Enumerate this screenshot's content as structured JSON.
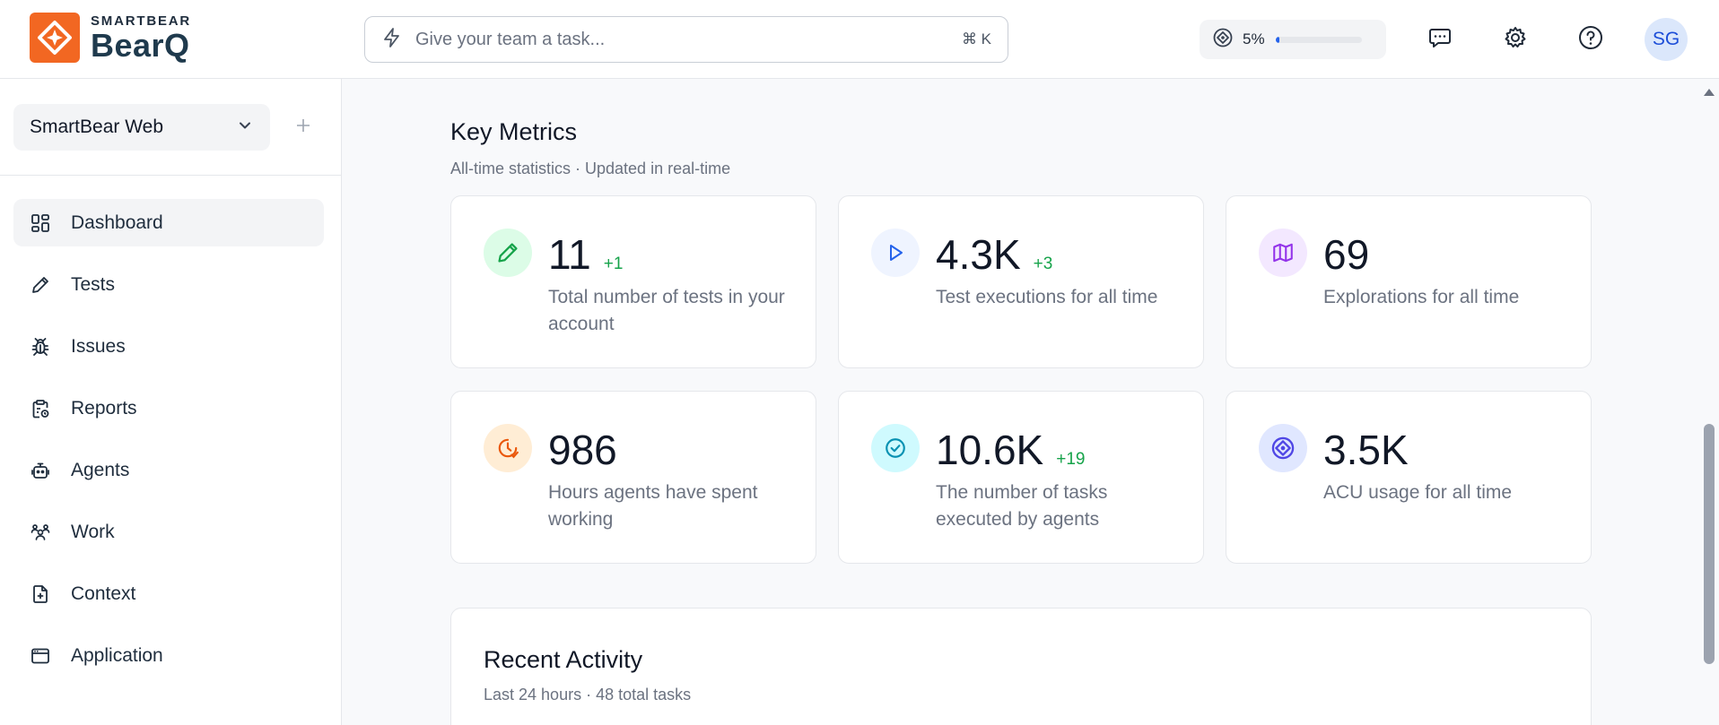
{
  "header": {
    "brand_small": "SMARTBEAR",
    "brand_name": "BearQ",
    "search_placeholder": "Give your team a task...",
    "search_shortcut": "⌘ K",
    "usage_percent": "5%",
    "usage_fraction": 0.05,
    "avatar_initials": "SG"
  },
  "sidebar": {
    "project_name": "SmartBear Web",
    "items": [
      {
        "label": "Dashboard",
        "icon": "dashboard-icon",
        "active": true
      },
      {
        "label": "Tests",
        "icon": "pencil-icon"
      },
      {
        "label": "Issues",
        "icon": "bug-icon"
      },
      {
        "label": "Reports",
        "icon": "clipboard-icon"
      },
      {
        "label": "Agents",
        "icon": "robot-icon"
      },
      {
        "label": "Work",
        "icon": "users-icon"
      },
      {
        "label": "Context",
        "icon": "file-plus-icon"
      },
      {
        "label": "Application",
        "icon": "browser-window-icon"
      }
    ]
  },
  "main": {
    "metrics_title": "Key Metrics",
    "metrics_subtitle": "All-time statistics · Updated in real-time",
    "metrics": [
      {
        "value": "11",
        "delta": "+1",
        "description": "Total number of tests in your account",
        "icon": "pencil-icon",
        "color": "#16a34a",
        "bg": "#dcfce7"
      },
      {
        "value": "4.3K",
        "delta": "+3",
        "description": "Test executions for all time",
        "icon": "play-icon",
        "color": "#2563eb",
        "bg": "#eff4ff"
      },
      {
        "value": "69",
        "delta": "",
        "description": "Explorations for all time",
        "icon": "map-icon",
        "color": "#9333ea",
        "bg": "#f3e8ff"
      },
      {
        "value": "986",
        "delta": "",
        "description": "Hours agents have spent working",
        "icon": "clock-icon",
        "color": "#ea580c",
        "bg": "#ffedd5"
      },
      {
        "value": "10.6K",
        "delta": "+19",
        "description": "The number of tasks executed by agents",
        "icon": "check-circle-icon",
        "color": "#0891b2",
        "bg": "#cffafe"
      },
      {
        "value": "3.5K",
        "delta": "",
        "description": "ACU usage for all time",
        "icon": "acu-icon",
        "color": "#4f46e5",
        "bg": "#e0e7ff"
      }
    ],
    "activity_title": "Recent Activity",
    "activity_subtitle": "Last 24 hours · 48 total tasks"
  }
}
